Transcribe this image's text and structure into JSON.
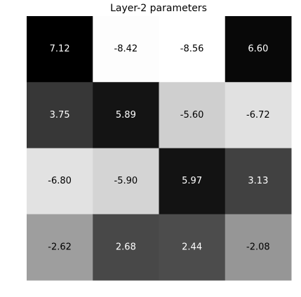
{
  "chart_data": {
    "type": "heatmap",
    "title": "Layer-2 parameters",
    "colormap": "gray_r",
    "grid": false,
    "values": [
      [
        7.12,
        -8.42,
        -8.56,
        6.6
      ],
      [
        3.75,
        5.89,
        -5.6,
        -6.72
      ],
      [
        -6.8,
        -5.9,
        5.97,
        3.13
      ],
      [
        -2.62,
        2.68,
        2.44,
        -2.08
      ]
    ],
    "labels": [
      [
        "7.12",
        "-8.42",
        "-8.56",
        "6.60"
      ],
      [
        "3.75",
        "5.89",
        "-5.60",
        "-6.72"
      ],
      [
        "-6.80",
        "-5.90",
        "5.97",
        "3.13"
      ],
      [
        "-2.62",
        "2.68",
        "2.44",
        "-2.08"
      ]
    ]
  }
}
